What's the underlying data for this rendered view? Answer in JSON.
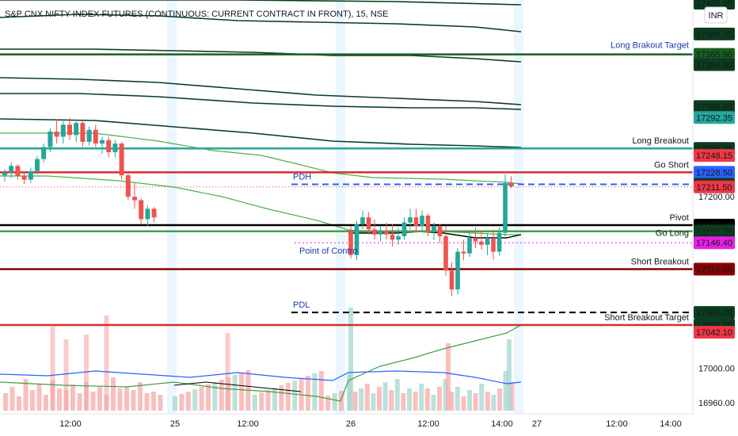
{
  "title": "S&P CNX NIFTY INDEX FUTURES (CONTINUOUS: CURRENT CONTRACT IN FRONT), 15, NSE",
  "currency": "INR",
  "chart_data": {
    "type": "candlestick",
    "timeframe": "15",
    "y_range": [
      16955,
      17432
    ],
    "x_labels": [
      "12:00",
      "25",
      "12:00",
      "26",
      "12:00",
      "14:00",
      "27",
      "12:00",
      "14:00"
    ],
    "price_tags": [
      {
        "price": 17425.65,
        "text": "17425.65",
        "bg": "#0b3d1e",
        "fg": "#ffffff"
      },
      {
        "price": 17389.75,
        "text": "17389.75",
        "bg": "#0b3d1e",
        "fg": "#ffffff"
      },
      {
        "price": 17365.9,
        "text": "17365.90",
        "bg": "#1b5e20",
        "fg": "#ffffff"
      },
      {
        "price": 17354.0,
        "text": "17354.00",
        "bg": "#0b3d1e",
        "fg": "#ffffff"
      },
      {
        "price": 17305.2,
        "text": "17305.20",
        "bg": "#0b3d1e",
        "fg": "#ffffff"
      },
      {
        "price": 17292.35,
        "text": "17292.35",
        "bg": "#26a69a",
        "fg": "#ffffff"
      },
      {
        "price": 17256.35,
        "text": "17256.35",
        "bg": "#0b3d1e",
        "fg": "#ffffff"
      },
      {
        "price": 17248.15,
        "text": "17248.15",
        "bg": "#f23645",
        "fg": "#ffffff"
      },
      {
        "price": 17228.5,
        "text": "17228.50",
        "bg": "#2962ff",
        "fg": "#ffffff"
      },
      {
        "price": 17214.5,
        "text": "17214.50",
        "bg": "#0b3d1e",
        "fg": "#ffffff"
      },
      {
        "price": 17211.5,
        "text": "17211.50",
        "bg": "#f23645",
        "fg": "#ffffff"
      },
      {
        "price": 17167.0,
        "text": "17167.00",
        "bg": "#000000",
        "fg": "#ffffff"
      },
      {
        "price": 17159.85,
        "text": "17159.85",
        "bg": "#43a047",
        "fg": "#ffffff"
      },
      {
        "price": 17159.75,
        "text": "17159.75",
        "bg": "#0b3d1e",
        "fg": "#ffffff"
      },
      {
        "price": 17152.2,
        "text": "17152.20",
        "bg": "#0b3d1e",
        "fg": "#ffffff"
      },
      {
        "price": 17146.4,
        "text": "17146.40",
        "bg": "#e91ee6",
        "fg": "#ffffff"
      },
      {
        "price": 17115.65,
        "text": "17115.65",
        "bg": "#8b0000",
        "fg": "#ffffff"
      },
      {
        "price": 17065.2,
        "text": "17065.20",
        "bg": "#0b3d1e",
        "fg": "#ffffff"
      },
      {
        "price": 17050.5,
        "text": "17050.50",
        "bg": "#0b3d1e",
        "fg": "#ffffff"
      },
      {
        "price": 17042.1,
        "text": "17042.10",
        "bg": "#f23645",
        "fg": "#ffffff"
      }
    ],
    "plain_ticks": [
      {
        "price": 17200.0,
        "text": "17200.00"
      },
      {
        "price": 17000.0,
        "text": "17000.00"
      },
      {
        "price": 16960.0,
        "text": "16960.00"
      }
    ],
    "levels": [
      {
        "name": "Long Brakout Target",
        "price": 17365.9,
        "color": "#1b5e20",
        "style": "solid",
        "width": 2.5,
        "label_color": "#1a3bb0"
      },
      {
        "name": "Long Breakout",
        "price": 17256.35,
        "color": "#26a69a",
        "style": "solid",
        "width": 2.5,
        "label_color": "#131722"
      },
      {
        "name": "Go Short",
        "price": 17228.5,
        "color": "#d32f2f",
        "style": "solid",
        "width": 2.5,
        "label_color": "#131722"
      },
      {
        "name": "PDH",
        "price": 17214.5,
        "color": "#2962ff",
        "style": "dashed",
        "width": 2,
        "label_color": "#1a3bb0"
      },
      {
        "name": "Pivot",
        "price": 17167.0,
        "color": "#000000",
        "style": "solid",
        "width": 2.5,
        "label_color": "#131722"
      },
      {
        "name": "Go Long",
        "price": 17159.85,
        "color": "#43a047",
        "style": "solid",
        "width": 2.5,
        "label_color": "#131722"
      },
      {
        "name": "Point of Contro",
        "price": 17146.4,
        "color": "#e91ee6",
        "style": "dotted",
        "width": 1,
        "label_color": "#1a3bb0"
      },
      {
        "name": "Short Breakout",
        "price": 17115.65,
        "color": "#8b0000",
        "style": "solid",
        "width": 2.5,
        "label_color": "#131722"
      },
      {
        "name": "PDL",
        "price": 17065.2,
        "color": "#000000",
        "style": "dashed",
        "width": 2,
        "label_color": "#1a3bb0"
      },
      {
        "name": "Short Breakout Target",
        "price": 17050.5,
        "color": "#d32f2f",
        "style": "solid",
        "width": 2.5,
        "label_color": "#131722"
      }
    ],
    "candles_day1": [
      [
        17225,
        17232,
        17218,
        17228
      ],
      [
        17228,
        17240,
        17222,
        17236
      ],
      [
        17236,
        17238,
        17220,
        17224
      ],
      [
        17224,
        17230,
        17215,
        17220
      ],
      [
        17220,
        17234,
        17216,
        17230
      ],
      [
        17230,
        17248,
        17226,
        17244
      ],
      [
        17244,
        17262,
        17240,
        17258
      ],
      [
        17258,
        17280,
        17252,
        17276
      ],
      [
        17276,
        17290,
        17262,
        17270
      ],
      [
        17270,
        17288,
        17262,
        17284
      ],
      [
        17284,
        17292,
        17266,
        17272
      ],
      [
        17272,
        17290,
        17264,
        17286
      ],
      [
        17286,
        17288,
        17258,
        17264
      ],
      [
        17264,
        17282,
        17260,
        17278
      ],
      [
        17278,
        17284,
        17258,
        17262
      ],
      [
        17262,
        17270,
        17250,
        17266
      ],
      [
        17266,
        17270,
        17246,
        17252
      ],
      [
        17252,
        17266,
        17246,
        17262
      ],
      [
        17262,
        17264,
        17220,
        17225
      ],
      [
        17225,
        17228,
        17196,
        17200
      ],
      [
        17200,
        17216,
        17186,
        17196
      ],
      [
        17196,
        17198,
        17168,
        17174
      ],
      [
        17174,
        17190,
        17166,
        17186
      ],
      [
        17186,
        17188,
        17170,
        17176
      ]
    ],
    "candles_day2": [
      [
        17160,
        17166,
        17128,
        17132
      ],
      [
        17132,
        17172,
        17126,
        17168
      ],
      [
        17168,
        17184,
        17162,
        17176
      ],
      [
        17176,
        17182,
        17156,
        17162
      ],
      [
        17162,
        17174,
        17150,
        17156
      ],
      [
        17156,
        17166,
        17148,
        17160
      ],
      [
        17160,
        17170,
        17150,
        17156
      ],
      [
        17156,
        17168,
        17142,
        17150
      ],
      [
        17150,
        17164,
        17144,
        17154
      ],
      [
        17154,
        17176,
        17150,
        17170
      ],
      [
        17170,
        17186,
        17162,
        17176
      ],
      [
        17176,
        17186,
        17158,
        17166
      ],
      [
        17166,
        17184,
        17160,
        17178
      ],
      [
        17178,
        17180,
        17154,
        17160
      ],
      [
        17160,
        17170,
        17150,
        17166
      ],
      [
        17166,
        17168,
        17146,
        17154
      ],
      [
        17154,
        17166,
        17108,
        17114
      ],
      [
        17114,
        17124,
        17084,
        17092
      ],
      [
        17092,
        17140,
        17086,
        17136
      ],
      [
        17136,
        17150,
        17126,
        17134
      ],
      [
        17134,
        17158,
        17130,
        17152
      ],
      [
        17152,
        17164,
        17140,
        17148
      ],
      [
        17148,
        17160,
        17138,
        17144
      ],
      [
        17144,
        17158,
        17132,
        17152
      ],
      [
        17152,
        17162,
        17126,
        17136
      ],
      [
        17136,
        17164,
        17132,
        17158
      ],
      [
        17158,
        17226,
        17154,
        17216
      ],
      [
        17216,
        17224,
        17210,
        17212
      ]
    ],
    "volume_day1": [
      22,
      30,
      18,
      40,
      26,
      34,
      20,
      38,
      28,
      26,
      33,
      22,
      36,
      24,
      30,
      20,
      42,
      28,
      30,
      26,
      36,
      22,
      24,
      20
    ],
    "volume_day2": [
      46,
      24,
      28,
      34,
      22,
      30,
      36,
      26,
      40,
      22,
      28,
      24,
      34,
      28,
      20,
      30,
      40,
      24,
      30,
      18,
      26,
      22,
      34,
      24,
      20,
      28,
      50,
      36
    ],
    "vol_day2_sustain": [
      20,
      18,
      24,
      22,
      20,
      26,
      22,
      30,
      22,
      26,
      24,
      20,
      28,
      22,
      26,
      24,
      30,
      20,
      18,
      24,
      22,
      28,
      20,
      26,
      22,
      24,
      30,
      22
    ],
    "vol_spikes_day1": [
      [
        7,
        46
      ],
      [
        15,
        60
      ],
      [
        33,
        38
      ],
      [
        9,
        30
      ],
      [
        12,
        36
      ]
    ]
  }
}
